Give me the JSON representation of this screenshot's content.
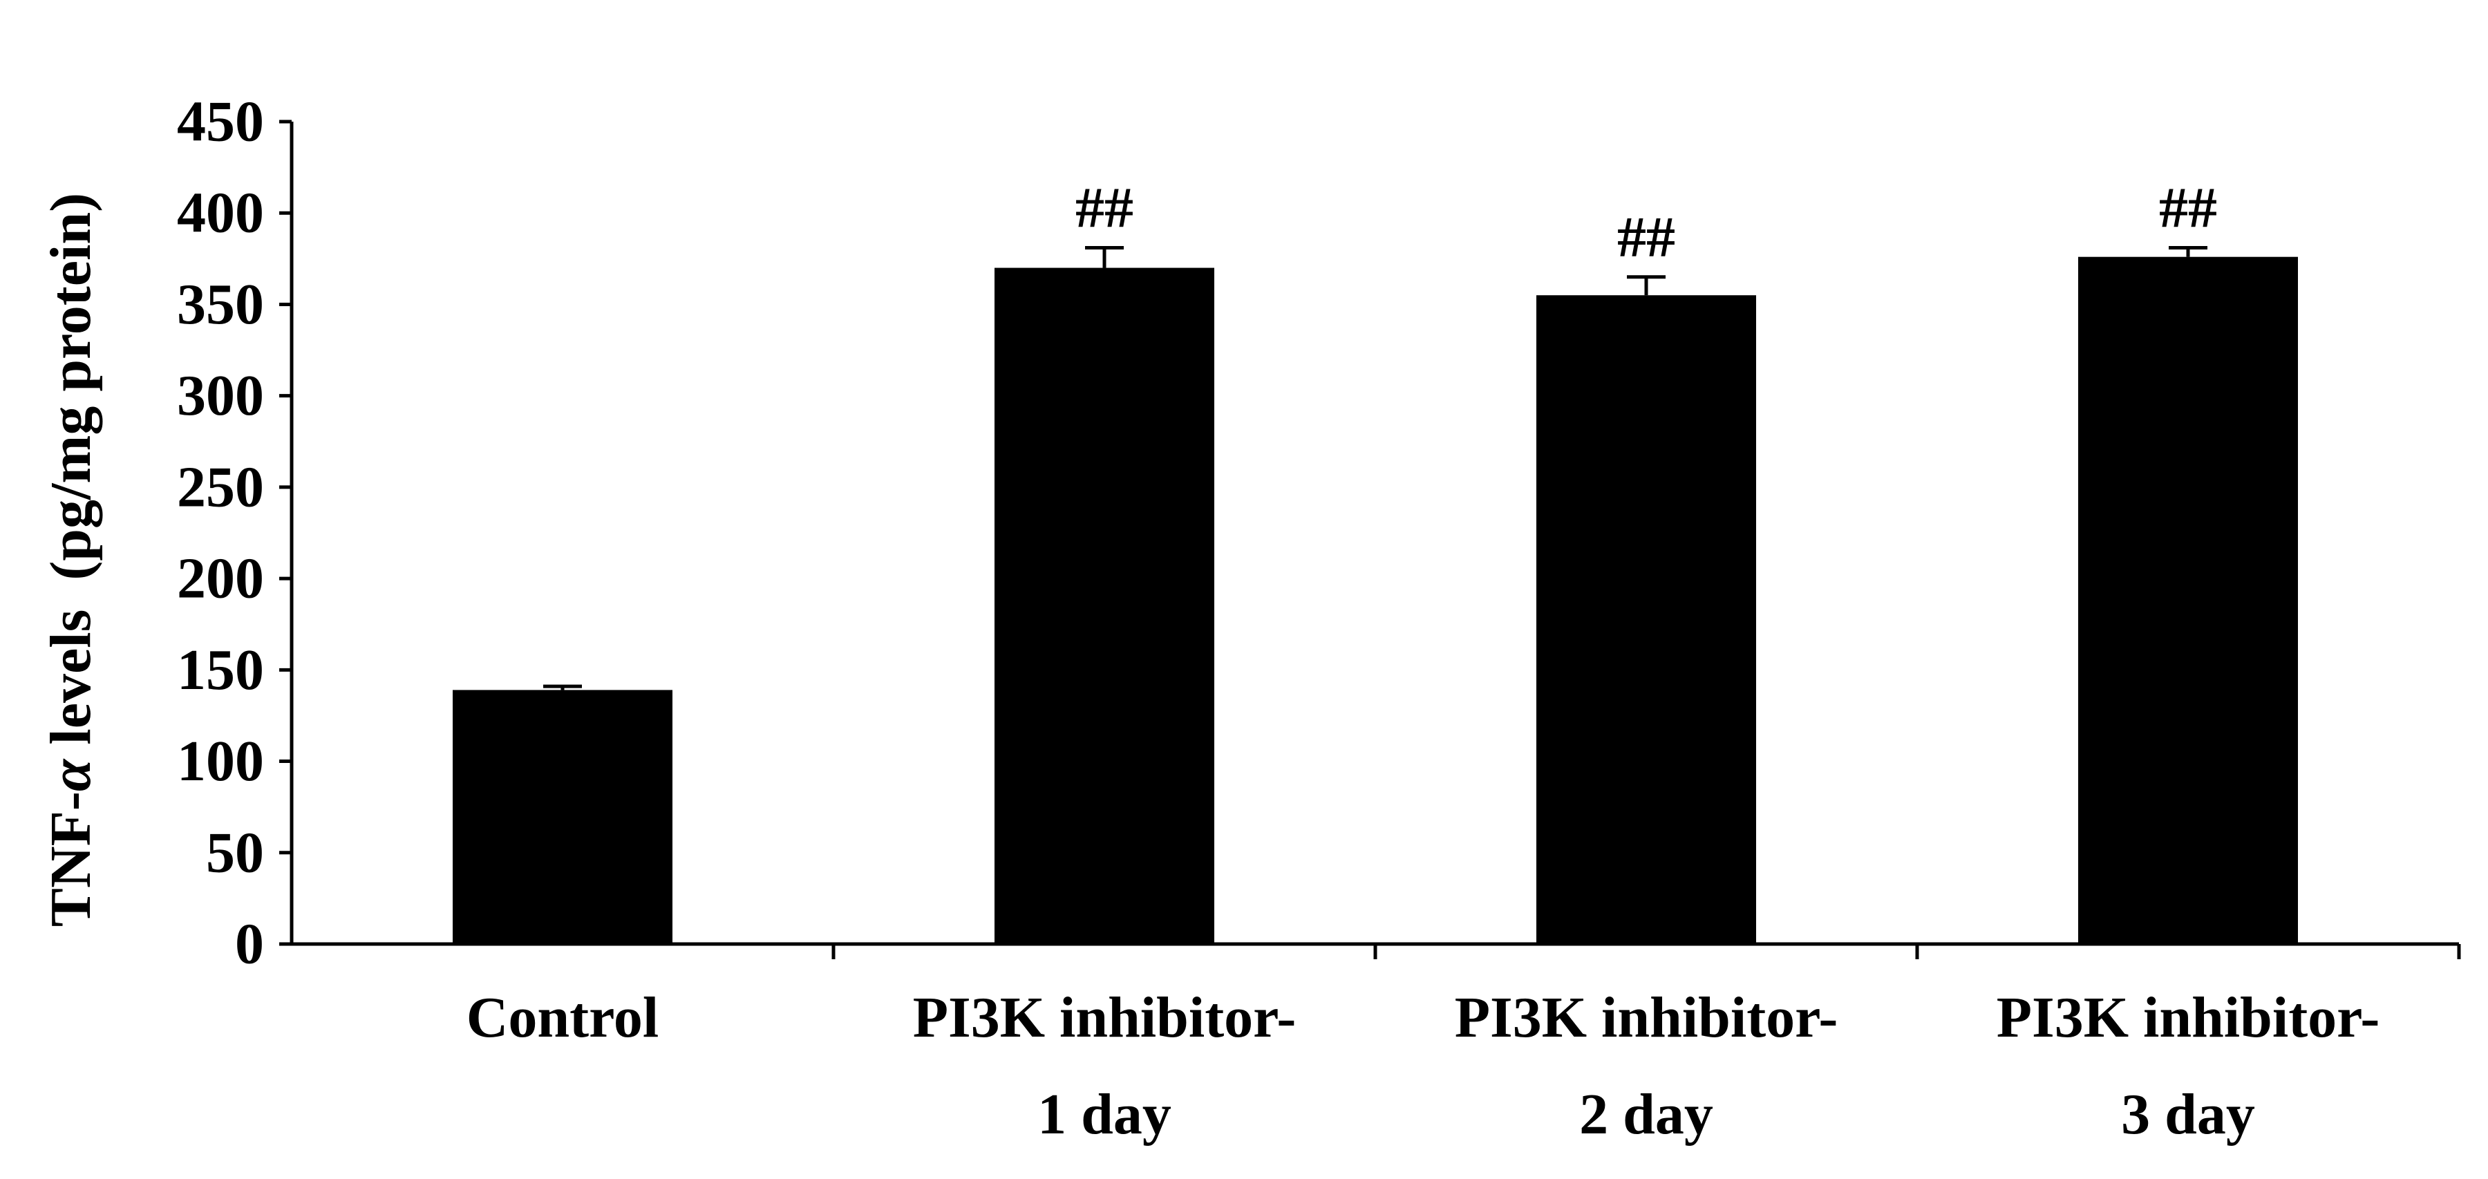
{
  "chart_data": {
    "type": "bar",
    "title": "",
    "xlabel": "",
    "ylabel": {
      "prefix": "TNF-",
      "symbol": "α",
      "suffix": " levels  (pg/mg protein)"
    },
    "ylim": [
      0,
      450
    ],
    "yticks": [
      "0",
      "50",
      "100",
      "150",
      "200",
      "250",
      "300",
      "350",
      "400",
      "450"
    ],
    "categories": [
      [
        "Control"
      ],
      [
        "PI3K inhibitor-",
        "1 day"
      ],
      [
        "PI3K inhibitor-",
        "2 day"
      ],
      [
        "PI3K inhibitor-",
        "3 day"
      ]
    ],
    "values": [
      139,
      370,
      355,
      376
    ],
    "errors": [
      2,
      11,
      10,
      5
    ],
    "annotations": [
      "",
      "##",
      "##",
      "##"
    ],
    "bar_color": "#000000",
    "grid": false,
    "legend": "none"
  }
}
